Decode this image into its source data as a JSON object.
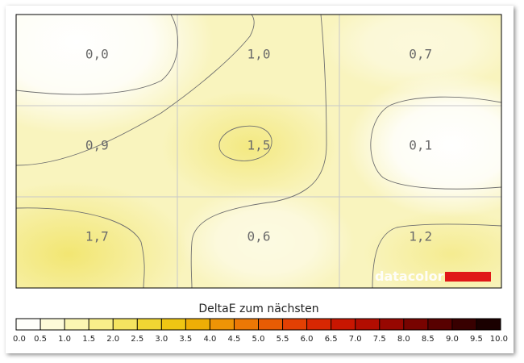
{
  "chart_data": {
    "type": "heatmap",
    "rows": 3,
    "cols": 3,
    "values": [
      [
        0.0,
        1.0,
        0.7
      ],
      [
        0.9,
        1.5,
        0.1
      ],
      [
        1.7,
        0.6,
        1.2
      ]
    ],
    "cell_labels": [
      [
        "0,0",
        "1,0",
        "0,7"
      ],
      [
        "0,9",
        "1,5",
        "0,1"
      ],
      [
        "1,7",
        "0,6",
        "1,2"
      ]
    ],
    "colorbar": {
      "title": "DeltaE zum nächsten",
      "range": [
        0.0,
        10.0
      ],
      "ticks": [
        "0.0",
        "0.5",
        "1.0",
        "1.5",
        "2.0",
        "2.5",
        "3.0",
        "3.5",
        "4.0",
        "4.5",
        "5.0",
        "5.5",
        "6.0",
        "6.5",
        "7.0",
        "7.5",
        "8.0",
        "8.5",
        "9.0",
        "9.5",
        "10.0"
      ],
      "colors": [
        "#fffffa",
        "#fdfbd9",
        "#fbf6b2",
        "#f8ef8a",
        "#f4e460",
        "#f1d633",
        "#efc613",
        "#eeae06",
        "#ee9406",
        "#ec7805",
        "#e85c04",
        "#e24003",
        "#d82702",
        "#c81601",
        "#b20d01",
        "#970701",
        "#780300",
        "#580100",
        "#380000",
        "#1a0000"
      ]
    },
    "watermark": "datacolor",
    "grid": true
  }
}
